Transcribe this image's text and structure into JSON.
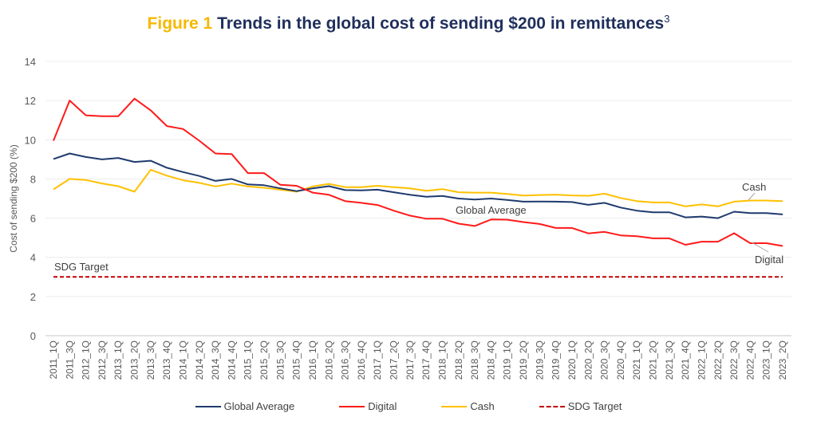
{
  "chart_data": {
    "type": "line",
    "title_prefix": "Figure 1",
    "title": "Trends in the global cost of sending $200 in remittances",
    "title_superscript": "3",
    "xlabel": "",
    "ylabel": "Cost of sending $200 (%)",
    "ylim": [
      0,
      14
    ],
    "yticks": [
      0,
      2,
      4,
      6,
      8,
      10,
      12,
      14
    ],
    "grid": true,
    "legend_position": "bottom",
    "categories": [
      "2011_1Q",
      "2011_3Q",
      "2012_1Q",
      "2012_3Q",
      "2013_1Q",
      "2013_2Q",
      "2013_3Q",
      "2013_4Q",
      "2014_1Q",
      "2014_2Q",
      "2014_3Q",
      "2014_4Q",
      "2015_1Q",
      "2015_2Q",
      "2015_3Q",
      "2015_4Q",
      "2016_1Q",
      "2016_2Q",
      "2016_3Q",
      "2016_4Q",
      "2017_1Q",
      "2017_2Q",
      "2017_3Q",
      "2017_4Q",
      "2018_1Q",
      "2018_2Q",
      "2018_3Q",
      "2018_4Q",
      "2019_1Q",
      "2019_2Q",
      "2019_3Q",
      "2019_4Q",
      "2020_1Q",
      "2020_2Q",
      "2020_3Q",
      "2020_4Q",
      "2021_1Q",
      "2021_2Q",
      "2021_3Q",
      "2021_4Q",
      "2022_1Q",
      "2022_2Q",
      "2022_3Q",
      "2022_4Q",
      "2023_1Q",
      "2023_2Q"
    ],
    "series": [
      {
        "name": "Global Average",
        "color": "#1f3a6e",
        "style": "solid",
        "values": [
          9.02,
          9.3,
          9.12,
          9.0,
          9.07,
          8.87,
          8.93,
          8.57,
          8.35,
          8.15,
          7.9,
          8.0,
          7.72,
          7.68,
          7.52,
          7.38,
          7.52,
          7.63,
          7.43,
          7.42,
          7.45,
          7.32,
          7.19,
          7.09,
          7.13,
          7.0,
          6.95,
          7.0,
          6.93,
          6.84,
          6.85,
          6.84,
          6.82,
          6.68,
          6.78,
          6.54,
          6.38,
          6.3,
          6.3,
          6.04,
          6.08,
          6.0,
          6.33,
          6.26,
          6.26,
          6.19
        ]
      },
      {
        "name": "Digital",
        "color": "#ff1a1a",
        "style": "solid",
        "values": [
          9.95,
          12.0,
          11.25,
          11.2,
          11.2,
          12.1,
          11.5,
          10.7,
          10.55,
          9.95,
          9.3,
          9.27,
          8.3,
          8.3,
          7.7,
          7.65,
          7.3,
          7.19,
          6.87,
          6.78,
          6.67,
          6.38,
          6.13,
          5.97,
          5.97,
          5.72,
          5.6,
          5.93,
          5.92,
          5.8,
          5.7,
          5.5,
          5.5,
          5.22,
          5.3,
          5.12,
          5.08,
          4.97,
          4.97,
          4.64,
          4.8,
          4.8,
          5.23,
          4.72,
          4.72,
          4.58
        ]
      },
      {
        "name": "Cash",
        "color": "#ffc000",
        "style": "solid",
        "values": [
          7.47,
          8.0,
          7.95,
          7.77,
          7.63,
          7.35,
          8.47,
          8.17,
          7.93,
          7.8,
          7.62,
          7.76,
          7.62,
          7.55,
          7.45,
          7.35,
          7.62,
          7.75,
          7.58,
          7.58,
          7.65,
          7.58,
          7.52,
          7.4,
          7.48,
          7.32,
          7.3,
          7.3,
          7.23,
          7.15,
          7.18,
          7.2,
          7.16,
          7.14,
          7.25,
          7.03,
          6.87,
          6.8,
          6.8,
          6.6,
          6.7,
          6.6,
          6.84,
          6.9,
          6.9,
          6.87
        ]
      },
      {
        "name": "SDG Target",
        "color": "#c00000",
        "style": "dashed",
        "values": [
          3,
          3,
          3,
          3,
          3,
          3,
          3,
          3,
          3,
          3,
          3,
          3,
          3,
          3,
          3,
          3,
          3,
          3,
          3,
          3,
          3,
          3,
          3,
          3,
          3,
          3,
          3,
          3,
          3,
          3,
          3,
          3,
          3,
          3,
          3,
          3,
          3,
          3,
          3,
          3,
          3,
          3,
          3,
          3,
          3,
          3
        ]
      }
    ],
    "annotations": [
      {
        "text": "SDG Target",
        "series": "SDG Target"
      },
      {
        "text": "Global Average",
        "series": "Global Average"
      },
      {
        "text": "Cash",
        "series": "Cash"
      },
      {
        "text": "Digital",
        "series": "Digital"
      }
    ]
  }
}
